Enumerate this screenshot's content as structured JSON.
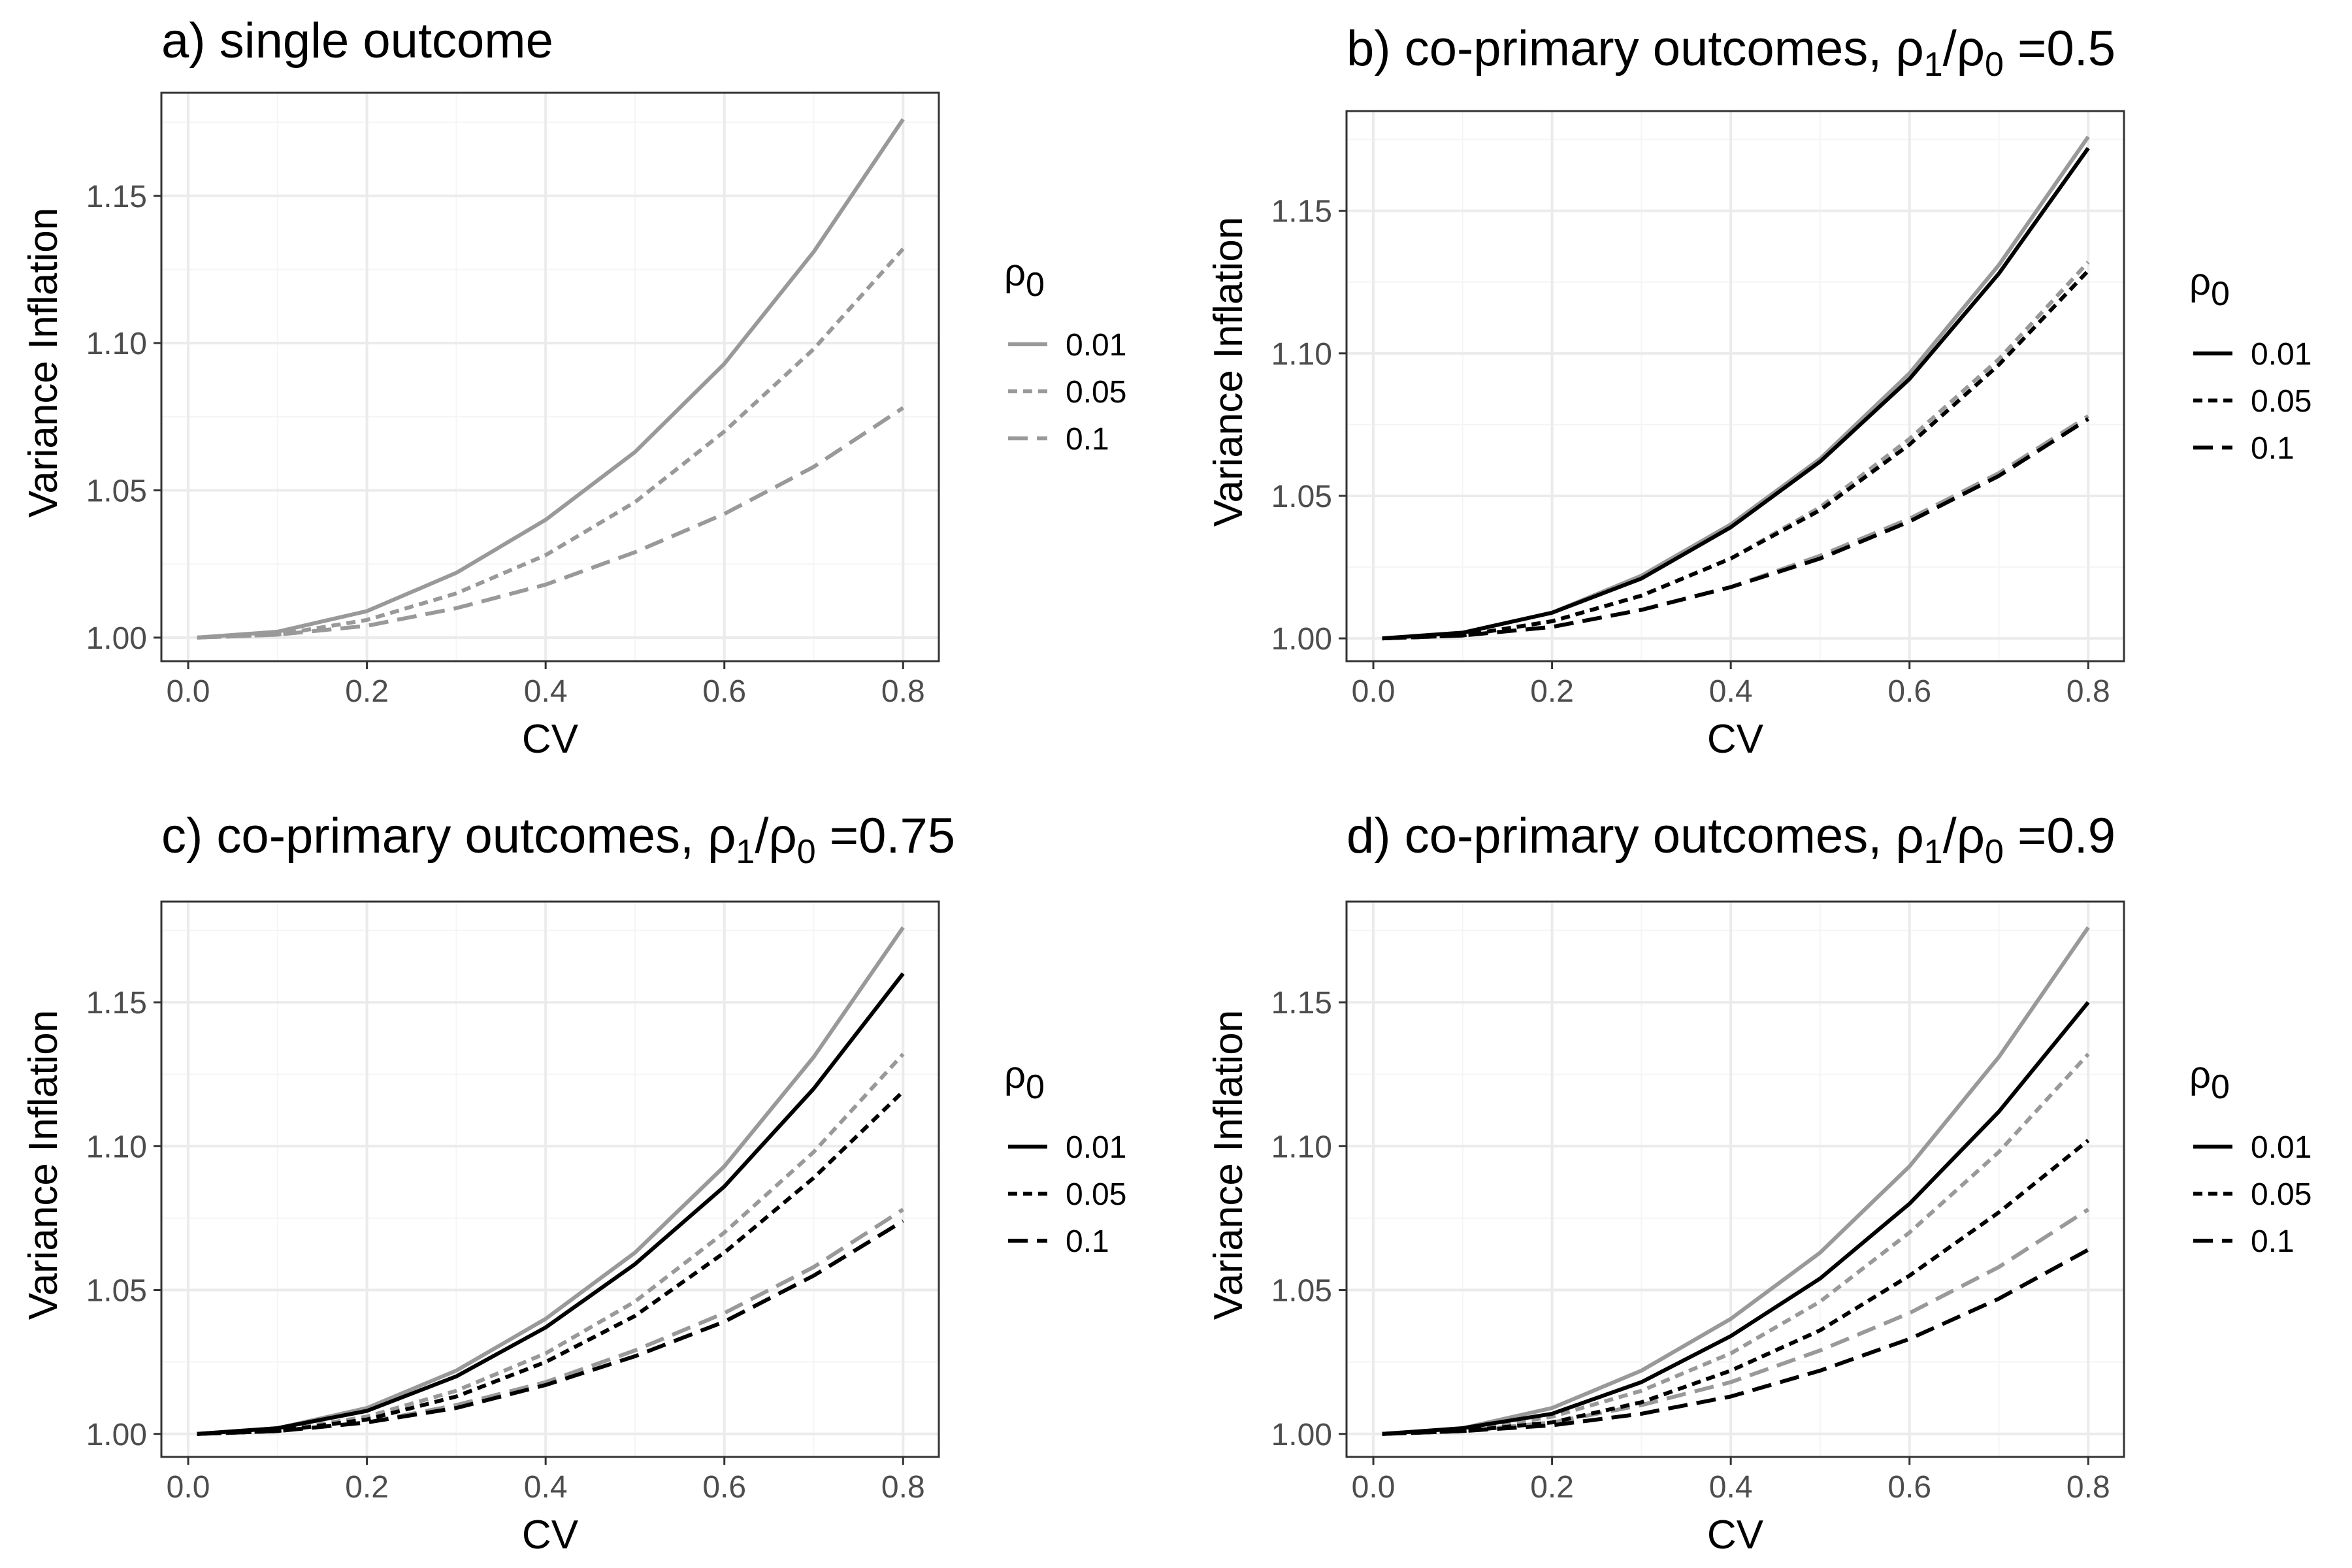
{
  "colors": {
    "grey": "#999999",
    "black": "#000000",
    "grid_major": "#ebebeb",
    "grid_minor": "#f5f5f5",
    "panel_border": "#333333"
  },
  "chart_data": [
    {
      "type": "line",
      "title": "a) single outcome",
      "xlabel": "CV",
      "ylabel": "Variance Inflation",
      "xlim": [
        -0.03,
        0.84
      ],
      "ylim": [
        0.992,
        1.185
      ],
      "x_ticks": [
        0.0,
        0.2,
        0.4,
        0.6,
        0.8
      ],
      "x_tick_labels": [
        "0.0",
        "0.2",
        "0.4",
        "0.6",
        "0.8"
      ],
      "y_ticks": [
        1.0,
        1.05,
        1.1,
        1.15
      ],
      "y_tick_labels": [
        "1.00",
        "1.05",
        "1.10",
        "1.15"
      ],
      "grid": true,
      "legend": {
        "title": "ρ0",
        "placement": "right",
        "entries": [
          "0.01",
          "0.05",
          "0.1"
        ],
        "color": "grey"
      },
      "x": [
        0.01,
        0.1,
        0.2,
        0.3,
        0.4,
        0.5,
        0.6,
        0.7,
        0.8
      ],
      "series": [
        {
          "name": "0.01",
          "color": "grey",
          "dash": "solid",
          "values": [
            1.0,
            1.002,
            1.009,
            1.022,
            1.04,
            1.063,
            1.093,
            1.131,
            1.176
          ]
        },
        {
          "name": "0.05",
          "color": "grey",
          "dash": "dotted",
          "values": [
            1.0,
            1.001,
            1.006,
            1.015,
            1.028,
            1.046,
            1.07,
            1.098,
            1.132
          ]
        },
        {
          "name": "0.1",
          "color": "grey",
          "dash": "dashed",
          "values": [
            1.0,
            1.001,
            1.004,
            1.01,
            1.018,
            1.029,
            1.042,
            1.058,
            1.078
          ]
        }
      ]
    },
    {
      "type": "line",
      "title": "b) co-primary outcomes, ρ1/ρ0 =0.5",
      "xlabel": "CV",
      "ylabel": "Variance Inflation",
      "xlim": [
        -0.03,
        0.84
      ],
      "ylim": [
        0.992,
        1.185
      ],
      "x_ticks": [
        0.0,
        0.2,
        0.4,
        0.6,
        0.8
      ],
      "x_tick_labels": [
        "0.0",
        "0.2",
        "0.4",
        "0.6",
        "0.8"
      ],
      "y_ticks": [
        1.0,
        1.05,
        1.1,
        1.15
      ],
      "y_tick_labels": [
        "1.00",
        "1.05",
        "1.10",
        "1.15"
      ],
      "grid": true,
      "legend": {
        "title": "ρ0",
        "placement": "right",
        "entries": [
          "0.01",
          "0.05",
          "0.1"
        ],
        "color": "black"
      },
      "x": [
        0.01,
        0.1,
        0.2,
        0.3,
        0.4,
        0.5,
        0.6,
        0.7,
        0.8
      ],
      "series": [
        {
          "name": "0.01",
          "color": "grey",
          "dash": "solid",
          "values": [
            1.0,
            1.002,
            1.009,
            1.022,
            1.04,
            1.063,
            1.093,
            1.131,
            1.176
          ]
        },
        {
          "name": "0.05",
          "color": "grey",
          "dash": "dotted",
          "values": [
            1.0,
            1.001,
            1.006,
            1.015,
            1.028,
            1.046,
            1.07,
            1.098,
            1.132
          ]
        },
        {
          "name": "0.1",
          "color": "grey",
          "dash": "dashed",
          "values": [
            1.0,
            1.001,
            1.004,
            1.01,
            1.018,
            1.029,
            1.042,
            1.058,
            1.078
          ]
        },
        {
          "name": "0.01",
          "color": "black",
          "dash": "solid",
          "values": [
            1.0,
            1.002,
            1.009,
            1.021,
            1.039,
            1.062,
            1.091,
            1.128,
            1.172
          ]
        },
        {
          "name": "0.05",
          "color": "black",
          "dash": "dotted",
          "values": [
            1.0,
            1.001,
            1.006,
            1.015,
            1.028,
            1.045,
            1.068,
            1.096,
            1.129
          ]
        },
        {
          "name": "0.1",
          "color": "black",
          "dash": "dashed",
          "values": [
            1.0,
            1.001,
            1.004,
            1.01,
            1.018,
            1.028,
            1.041,
            1.057,
            1.077
          ]
        }
      ]
    },
    {
      "type": "line",
      "title": "c) co-primary outcomes, ρ1/ρ0 =0.75",
      "xlabel": "CV",
      "ylabel": "Variance Inflation",
      "xlim": [
        -0.03,
        0.84
      ],
      "ylim": [
        0.992,
        1.185
      ],
      "x_ticks": [
        0.0,
        0.2,
        0.4,
        0.6,
        0.8
      ],
      "x_tick_labels": [
        "0.0",
        "0.2",
        "0.4",
        "0.6",
        "0.8"
      ],
      "y_ticks": [
        1.0,
        1.05,
        1.1,
        1.15
      ],
      "y_tick_labels": [
        "1.00",
        "1.05",
        "1.10",
        "1.15"
      ],
      "grid": true,
      "legend": {
        "title": "ρ0",
        "placement": "right",
        "entries": [
          "0.01",
          "0.05",
          "0.1"
        ],
        "color": "black"
      },
      "x": [
        0.01,
        0.1,
        0.2,
        0.3,
        0.4,
        0.5,
        0.6,
        0.7,
        0.8
      ],
      "series": [
        {
          "name": "0.01",
          "color": "grey",
          "dash": "solid",
          "values": [
            1.0,
            1.002,
            1.009,
            1.022,
            1.04,
            1.063,
            1.093,
            1.131,
            1.176
          ]
        },
        {
          "name": "0.05",
          "color": "grey",
          "dash": "dotted",
          "values": [
            1.0,
            1.001,
            1.006,
            1.015,
            1.028,
            1.046,
            1.07,
            1.098,
            1.132
          ]
        },
        {
          "name": "0.1",
          "color": "grey",
          "dash": "dashed",
          "values": [
            1.0,
            1.001,
            1.004,
            1.01,
            1.018,
            1.029,
            1.042,
            1.058,
            1.078
          ]
        },
        {
          "name": "0.01",
          "color": "black",
          "dash": "solid",
          "values": [
            1.0,
            1.002,
            1.008,
            1.02,
            1.037,
            1.059,
            1.086,
            1.12,
            1.16
          ]
        },
        {
          "name": "0.05",
          "color": "black",
          "dash": "dotted",
          "values": [
            1.0,
            1.001,
            1.005,
            1.013,
            1.025,
            1.041,
            1.063,
            1.089,
            1.119
          ]
        },
        {
          "name": "0.1",
          "color": "black",
          "dash": "dashed",
          "values": [
            1.0,
            1.001,
            1.004,
            1.009,
            1.017,
            1.027,
            1.039,
            1.055,
            1.074
          ]
        }
      ]
    },
    {
      "type": "line",
      "title": "d) co-primary outcomes, ρ1/ρ0 =0.9",
      "xlabel": "CV",
      "ylabel": "Variance Inflation",
      "xlim": [
        -0.03,
        0.84
      ],
      "ylim": [
        0.992,
        1.185
      ],
      "x_ticks": [
        0.0,
        0.2,
        0.4,
        0.6,
        0.8
      ],
      "x_tick_labels": [
        "0.0",
        "0.2",
        "0.4",
        "0.6",
        "0.8"
      ],
      "y_ticks": [
        1.0,
        1.05,
        1.1,
        1.15
      ],
      "y_tick_labels": [
        "1.00",
        "1.05",
        "1.10",
        "1.15"
      ],
      "grid": true,
      "legend": {
        "title": "ρ0",
        "placement": "right",
        "entries": [
          "0.01",
          "0.05",
          "0.1"
        ],
        "color": "black"
      },
      "x": [
        0.01,
        0.1,
        0.2,
        0.3,
        0.4,
        0.5,
        0.6,
        0.7,
        0.8
      ],
      "series": [
        {
          "name": "0.01",
          "color": "grey",
          "dash": "solid",
          "values": [
            1.0,
            1.002,
            1.009,
            1.022,
            1.04,
            1.063,
            1.093,
            1.131,
            1.176
          ]
        },
        {
          "name": "0.05",
          "color": "grey",
          "dash": "dotted",
          "values": [
            1.0,
            1.001,
            1.006,
            1.015,
            1.028,
            1.046,
            1.07,
            1.098,
            1.132
          ]
        },
        {
          "name": "0.1",
          "color": "grey",
          "dash": "dashed",
          "values": [
            1.0,
            1.001,
            1.004,
            1.01,
            1.018,
            1.029,
            1.042,
            1.058,
            1.078
          ]
        },
        {
          "name": "0.01",
          "color": "black",
          "dash": "solid",
          "values": [
            1.0,
            1.002,
            1.007,
            1.018,
            1.034,
            1.054,
            1.08,
            1.112,
            1.15
          ]
        },
        {
          "name": "0.05",
          "color": "black",
          "dash": "dotted",
          "values": [
            1.0,
            1.001,
            1.004,
            1.011,
            1.022,
            1.036,
            1.055,
            1.077,
            1.102
          ]
        },
        {
          "name": "0.1",
          "color": "black",
          "dash": "dashed",
          "values": [
            1.0,
            1.001,
            1.003,
            1.007,
            1.013,
            1.022,
            1.033,
            1.047,
            1.064
          ]
        }
      ]
    }
  ]
}
